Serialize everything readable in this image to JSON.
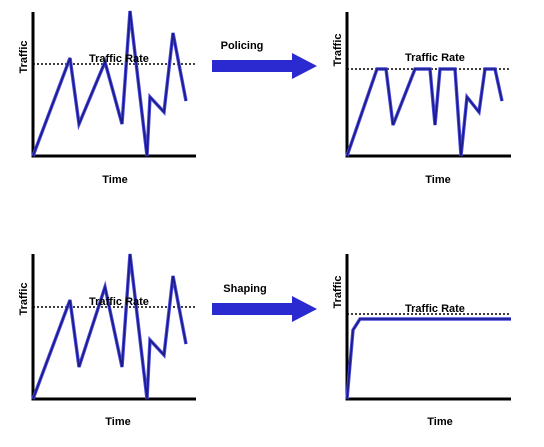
{
  "colors": {
    "signal": "#1a1a8c",
    "signal_edge": "#4a4ad8",
    "arrow": "#2a2ad0",
    "axis": "#000000"
  },
  "panels": {
    "policing_in": {
      "ylabel": "Traffic",
      "xlabel": "Time",
      "rate_label": "Traffic Rate"
    },
    "policing_out": {
      "ylabel": "Traffic",
      "xlabel": "Time",
      "rate_label": "Traffic Rate"
    },
    "shaping_in": {
      "ylabel": "Traffic",
      "xlabel": "Time",
      "rate_label": "Traffic Rate"
    },
    "shaping_out": {
      "ylabel": "Traffic",
      "xlabel": "Time",
      "rate_label": "Traffic Rate"
    }
  },
  "arrows": {
    "policing": {
      "label": "Policing",
      "icon": "right-arrow-icon"
    },
    "shaping": {
      "label": "Shaping",
      "icon": "right-arrow-icon"
    }
  }
}
